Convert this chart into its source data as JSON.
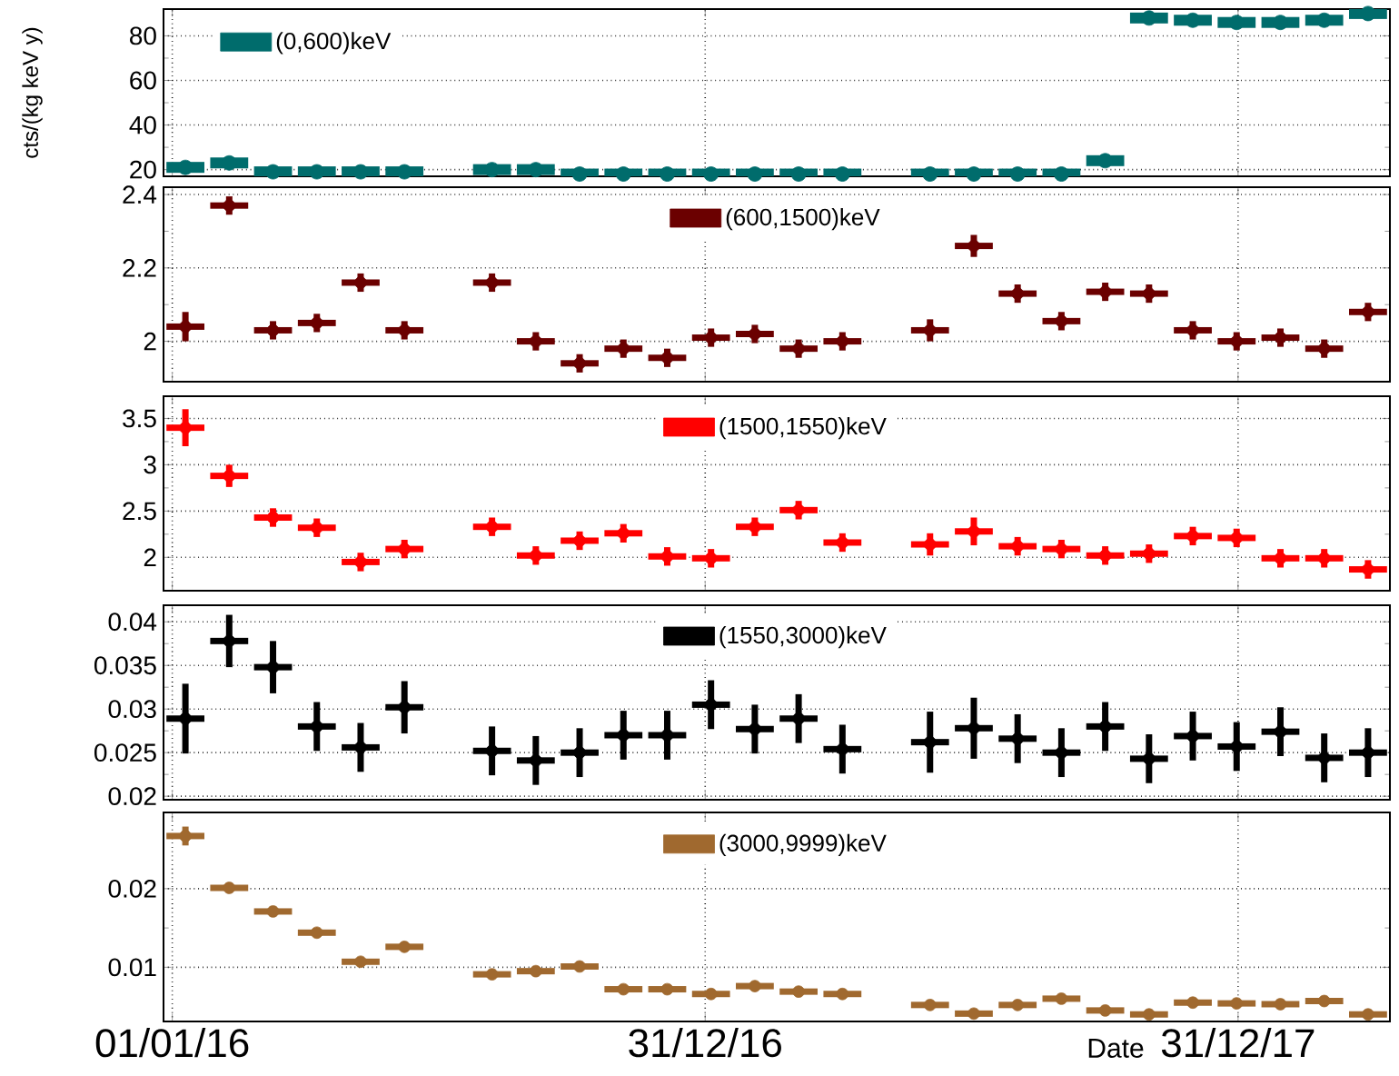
{
  "chart_data": [
    {
      "type": "scatter",
      "ylabel": "cts/(kg keV y)",
      "grid": true,
      "legend": "top left",
      "tick_labels": "y",
      "x": [
        "2016-01-10",
        "2016-02-09",
        "2016-03-10",
        "2016-04-09",
        "2016-05-09",
        "2016-06-08",
        "2016-08-07",
        "2016-09-06",
        "2016-10-06",
        "2016-11-05",
        "2016-12-05",
        "2017-01-04",
        "2017-02-03",
        "2017-03-05",
        "2017-04-04",
        "2017-06-03",
        "2017-07-03",
        "2017-08-02",
        "2017-09-01",
        "2017-10-01",
        "2017-10-31",
        "2017-11-30",
        "2017-12-30",
        "2018-01-29",
        "2018-02-28",
        "2018-03-30"
      ],
      "xlim": [
        "2015-12-26",
        "2018-04-14"
      ],
      "xticks": [
        {
          "value": "2016-01-01",
          "label": null
        },
        {
          "value": "2016-12-31",
          "label": null
        },
        {
          "value": "2017-12-31",
          "label": null
        }
      ],
      "ylim": [
        17,
        92
      ],
      "yticks": [
        20,
        40,
        60,
        80
      ],
      "series": [
        {
          "name": "(0,600)keV",
          "color": "#006c6c",
          "values": [
            21,
            23,
            19,
            19,
            19,
            19,
            20,
            20,
            18,
            18,
            18,
            18,
            18,
            18,
            18,
            18,
            18,
            18,
            18,
            24,
            88,
            87,
            86,
            86,
            87,
            90
          ],
          "xerrors": [
            13,
            13,
            13,
            13,
            13,
            13,
            13,
            13,
            13,
            13,
            13,
            13,
            13,
            13,
            13,
            13,
            13,
            13,
            13,
            13,
            13,
            13,
            13,
            13,
            13,
            13
          ]
        }
      ]
    },
    {
      "type": "scatter",
      "grid": true,
      "legend": "top",
      "tick_labels": "y",
      "x": [
        "2016-01-10",
        "2016-02-09",
        "2016-03-10",
        "2016-04-09",
        "2016-05-09",
        "2016-06-08",
        "2016-08-07",
        "2016-09-06",
        "2016-10-06",
        "2016-11-05",
        "2016-12-05",
        "2017-01-04",
        "2017-02-03",
        "2017-03-05",
        "2017-04-04",
        "2017-06-03",
        "2017-07-03",
        "2017-08-02",
        "2017-09-01",
        "2017-10-01",
        "2017-10-31",
        "2017-11-30",
        "2017-12-30",
        "2018-01-29",
        "2018-02-28",
        "2018-03-30"
      ],
      "xlim": [
        "2015-12-26",
        "2018-04-14"
      ],
      "xticks": [
        {
          "value": "2016-01-01",
          "label": null
        },
        {
          "value": "2016-12-31",
          "label": null
        },
        {
          "value": "2017-12-31",
          "label": null
        }
      ],
      "ylim": [
        1.89,
        2.42
      ],
      "yticks": [
        2,
        2.2,
        2.4
      ],
      "series": [
        {
          "name": "(600,1500)keV",
          "color": "#6b0000",
          "values": [
            2.04,
            2.37,
            2.03,
            2.05,
            2.16,
            2.03,
            2.16,
            2.0,
            1.94,
            1.98,
            1.955,
            2.01,
            2.02,
            1.98,
            2.0,
            2.03,
            2.26,
            2.13,
            2.055,
            2.135,
            2.13,
            2.03,
            2.0,
            2.01,
            1.98,
            2.08
          ],
          "errors": [
            0.04,
            0.025,
            0.025,
            0.025,
            0.025,
            0.025,
            0.025,
            0.025,
            0.025,
            0.025,
            0.025,
            0.025,
            0.025,
            0.025,
            0.025,
            0.03,
            0.03,
            0.025,
            0.025,
            0.025,
            0.025,
            0.025,
            0.025,
            0.025,
            0.025,
            0.025
          ],
          "xerrors": [
            13,
            13,
            13,
            13,
            13,
            13,
            13,
            13,
            13,
            13,
            13,
            13,
            13,
            13,
            13,
            13,
            13,
            13,
            13,
            13,
            13,
            13,
            13,
            13,
            13,
            13
          ]
        }
      ]
    },
    {
      "type": "scatter",
      "grid": true,
      "legend": "top",
      "tick_labels": "y",
      "x": [
        "2016-01-10",
        "2016-02-09",
        "2016-03-10",
        "2016-04-09",
        "2016-05-09",
        "2016-06-08",
        "2016-08-07",
        "2016-09-06",
        "2016-10-06",
        "2016-11-05",
        "2016-12-05",
        "2017-01-04",
        "2017-02-03",
        "2017-03-05",
        "2017-04-04",
        "2017-06-03",
        "2017-07-03",
        "2017-08-02",
        "2017-09-01",
        "2017-10-01",
        "2017-10-31",
        "2017-11-30",
        "2017-12-30",
        "2018-01-29",
        "2018-02-28",
        "2018-03-30"
      ],
      "xlim": [
        "2015-12-26",
        "2018-04-14"
      ],
      "xticks": [
        {
          "value": "2016-01-01",
          "label": null
        },
        {
          "value": "2016-12-31",
          "label": null
        },
        {
          "value": "2017-12-31",
          "label": null
        }
      ],
      "ylim": [
        1.64,
        3.74
      ],
      "yticks": [
        2,
        2.5,
        3,
        3.5
      ],
      "series": [
        {
          "name": "(1500,1550)keV",
          "color": "#ff0000",
          "values": [
            3.4,
            2.88,
            2.43,
            2.32,
            1.95,
            2.09,
            2.33,
            2.02,
            2.18,
            2.26,
            2.01,
            1.99,
            2.33,
            2.51,
            2.16,
            2.14,
            2.28,
            2.12,
            2.09,
            2.02,
            2.04,
            2.23,
            2.21,
            1.99,
            1.99,
            1.87
          ],
          "errors": [
            0.2,
            0.12,
            0.1,
            0.1,
            0.1,
            0.1,
            0.1,
            0.1,
            0.1,
            0.1,
            0.1,
            0.1,
            0.1,
            0.1,
            0.1,
            0.12,
            0.15,
            0.1,
            0.1,
            0.1,
            0.1,
            0.1,
            0.1,
            0.1,
            0.1,
            0.1
          ],
          "xerrors": [
            13,
            13,
            13,
            13,
            13,
            13,
            13,
            13,
            13,
            13,
            13,
            13,
            13,
            13,
            13,
            13,
            13,
            13,
            13,
            13,
            13,
            13,
            13,
            13,
            13,
            13
          ]
        }
      ]
    },
    {
      "type": "scatter",
      "grid": true,
      "legend": "top",
      "tick_labels": "y",
      "x": [
        "2016-01-10",
        "2016-02-09",
        "2016-03-10",
        "2016-04-09",
        "2016-05-09",
        "2016-06-08",
        "2016-08-07",
        "2016-09-06",
        "2016-10-06",
        "2016-11-05",
        "2016-12-05",
        "2017-01-04",
        "2017-02-03",
        "2017-03-05",
        "2017-04-04",
        "2017-06-03",
        "2017-07-03",
        "2017-08-02",
        "2017-09-01",
        "2017-10-01",
        "2017-10-31",
        "2017-11-30",
        "2017-12-30",
        "2018-01-29",
        "2018-02-28",
        "2018-03-30"
      ],
      "xlim": [
        "2015-12-26",
        "2018-04-14"
      ],
      "xticks": [
        {
          "value": "2016-01-01",
          "label": null
        },
        {
          "value": "2016-12-31",
          "label": null
        },
        {
          "value": "2017-12-31",
          "label": null
        }
      ],
      "ylim": [
        0.0196,
        0.0419
      ],
      "yticks": [
        0.02,
        0.025,
        0.03,
        0.035,
        0.04
      ],
      "series": [
        {
          "name": "(1550,3000)keV",
          "color": "#000000",
          "values": [
            0.0289,
            0.0378,
            0.0348,
            0.028,
            0.0256,
            0.0302,
            0.0252,
            0.0241,
            0.025,
            0.027,
            0.027,
            0.0305,
            0.0277,
            0.0289,
            0.0254,
            0.0262,
            0.0278,
            0.0266,
            0.025,
            0.028,
            0.0243,
            0.0269,
            0.0257,
            0.0274,
            0.0244,
            0.025
          ],
          "errors": [
            0.004,
            0.003,
            0.003,
            0.0028,
            0.0028,
            0.003,
            0.0028,
            0.0028,
            0.0028,
            0.0028,
            0.0028,
            0.0028,
            0.0028,
            0.0028,
            0.0028,
            0.0035,
            0.0035,
            0.0028,
            0.0028,
            0.0028,
            0.0028,
            0.0028,
            0.0028,
            0.0028,
            0.0028,
            0.0028
          ],
          "xerrors": [
            13,
            13,
            13,
            13,
            13,
            13,
            13,
            13,
            13,
            13,
            13,
            13,
            13,
            13,
            13,
            13,
            13,
            13,
            13,
            13,
            13,
            13,
            13,
            13,
            13,
            13
          ]
        }
      ]
    },
    {
      "type": "scatter",
      "xlabel": "Date",
      "grid": true,
      "legend": "top",
      "x": [
        "2016-01-10",
        "2016-02-09",
        "2016-03-10",
        "2016-04-09",
        "2016-05-09",
        "2016-06-08",
        "2016-08-07",
        "2016-09-06",
        "2016-10-06",
        "2016-11-05",
        "2016-12-05",
        "2017-01-04",
        "2017-02-03",
        "2017-03-05",
        "2017-04-04",
        "2017-06-03",
        "2017-07-03",
        "2017-08-02",
        "2017-09-01",
        "2017-10-01",
        "2017-10-31",
        "2017-11-30",
        "2017-12-30",
        "2018-01-29",
        "2018-02-28",
        "2018-03-30"
      ],
      "xlim": [
        "2015-12-26",
        "2018-04-14"
      ],
      "xticks": [
        {
          "value": "2016-01-01",
          "label": "01/01/16"
        },
        {
          "value": "2016-12-31",
          "label": "31/12/16"
        },
        {
          "value": "2017-12-31",
          "label": "31/12/17"
        }
      ],
      "ylim": [
        0.0031,
        0.0297
      ],
      "yticks": [
        0.01,
        0.02
      ],
      "series": [
        {
          "name": "(3000,9999)keV",
          "color": "#a0692f",
          "values": [
            0.0267,
            0.0201,
            0.0171,
            0.0144,
            0.0107,
            0.0126,
            0.0091,
            0.0095,
            0.0101,
            0.0072,
            0.0072,
            0.0066,
            0.0076,
            0.0069,
            0.0066,
            0.0052,
            0.0041,
            0.0052,
            0.006,
            0.0045,
            0.004,
            0.0055,
            0.0054,
            0.0053,
            0.0057,
            0.004
          ],
          "errors": [
            0.0012,
            0.0006,
            0.0005,
            0.0005,
            0.0005,
            0.0005,
            0.0005,
            0.0005,
            0.0005,
            0.0005,
            0.0005,
            0.0005,
            0.0005,
            0.0005,
            0.0005,
            0.0005,
            0.0005,
            0.0005,
            0.0005,
            0.0005,
            0.0005,
            0.0005,
            0.0005,
            0.0005,
            0.0005,
            0.0005
          ],
          "xerrors": [
            13,
            13,
            13,
            13,
            13,
            13,
            13,
            13,
            13,
            13,
            13,
            13,
            13,
            13,
            13,
            13,
            13,
            13,
            13,
            13,
            13,
            13,
            13,
            13,
            13,
            13
          ]
        }
      ]
    }
  ]
}
